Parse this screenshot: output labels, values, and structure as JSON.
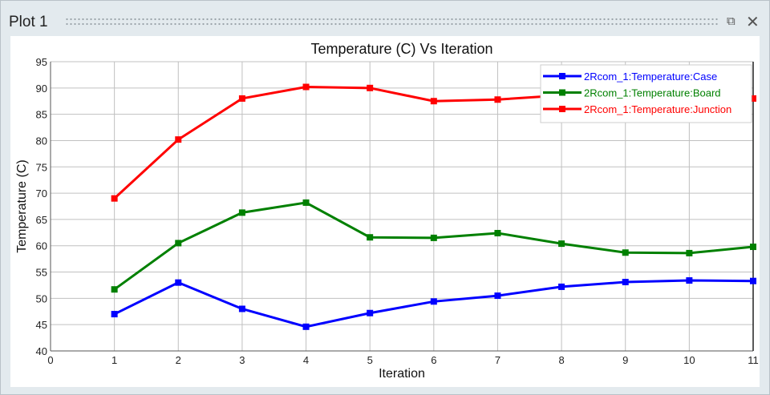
{
  "window": {
    "title": "Plot 1",
    "restore_icon": "restore-icon",
    "close_icon": "close-icon"
  },
  "chart_data": {
    "type": "line",
    "title": "Temperature (C) Vs Iteration",
    "xlabel": "Iteration",
    "ylabel": "Temperature (C)",
    "xlim": [
      0,
      11
    ],
    "ylim": [
      40,
      95
    ],
    "xticks": [
      0,
      1,
      2,
      3,
      4,
      5,
      6,
      7,
      8,
      9,
      10,
      11
    ],
    "yticks": [
      40,
      45,
      50,
      55,
      60,
      65,
      70,
      75,
      80,
      85,
      90,
      95
    ],
    "grid": true,
    "legend_position": "top-right",
    "x": [
      1,
      2,
      3,
      4,
      5,
      6,
      7,
      8,
      9,
      10,
      11
    ],
    "series": [
      {
        "name": "2Rcom_1:Temperature:Case",
        "color": "#0000ff",
        "values": [
          47.0,
          53.0,
          48.0,
          44.6,
          47.2,
          49.4,
          50.5,
          52.2,
          53.1,
          53.4,
          53.3
        ]
      },
      {
        "name": "2Rcom_1:Temperature:Board",
        "color": "#008000",
        "values": [
          51.7,
          60.5,
          66.3,
          68.2,
          61.6,
          61.5,
          62.4,
          60.4,
          58.7,
          58.6,
          59.8
        ]
      },
      {
        "name": "2Rcom_1:Temperature:Junction",
        "color": "#ff0000",
        "values": [
          69.0,
          80.2,
          88.0,
          90.2,
          90.0,
          87.5,
          87.8,
          88.6,
          88.4,
          88.2,
          88.0
        ]
      }
    ]
  }
}
